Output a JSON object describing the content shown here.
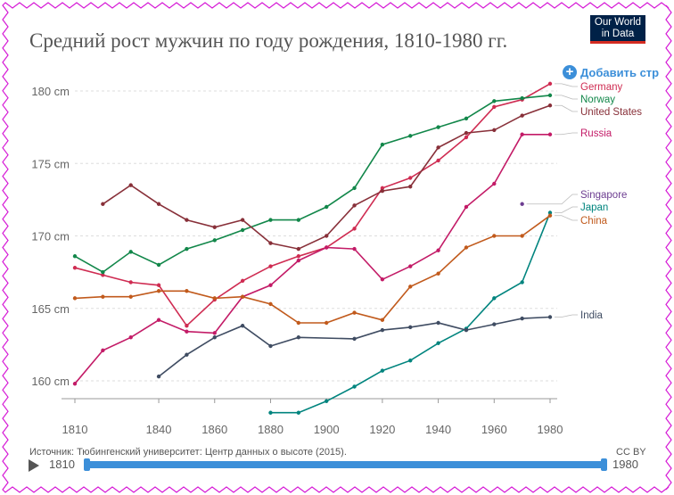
{
  "header": {
    "title": "Средний рост мужчин по году рождения, 1810-1980 гг.",
    "logo_line1": "Our World",
    "logo_line2": "in Data",
    "add_country_label": "Добавить стр"
  },
  "footer": {
    "source": "Источник: Тюбингенский университет: Центр данных о высоте (2015).",
    "license": "CC BY",
    "timeline_start": "1810",
    "timeline_end": "1980"
  },
  "chart_data": {
    "type": "line",
    "title": "Средний рост мужчин по году рождения, 1810-1980 гг.",
    "xlim": [
      1810,
      1980
    ],
    "ylim": [
      157.5,
      181.5
    ],
    "x_ticks": [
      "1810",
      "1840",
      "1860",
      "1880",
      "1900",
      "1920",
      "1940",
      "1960",
      "1980"
    ],
    "y_ticks": [
      "160 cm",
      "165 cm",
      "170 cm",
      "175 cm",
      "180 cm"
    ],
    "y_tick_values": [
      160,
      165,
      170,
      175,
      180
    ],
    "grid": "horizontal dashed",
    "legend": "right, labels at line ends",
    "series": [
      {
        "name": "Germany",
        "color": "#cf2c52",
        "x": [
          1810,
          1820,
          1830,
          1840,
          1850,
          1860,
          1870,
          1880,
          1890,
          1900,
          1910,
          1920,
          1930,
          1940,
          1950,
          1960,
          1970,
          1980
        ],
        "y": [
          167.8,
          167.3,
          166.8,
          166.6,
          163.8,
          165.6,
          166.9,
          167.9,
          168.6,
          169.2,
          170.5,
          173.3,
          174.0,
          175.2,
          176.8,
          178.9,
          179.4,
          180.5
        ]
      },
      {
        "name": "Norway",
        "color": "#12874a",
        "x": [
          1810,
          1820,
          1830,
          1840,
          1850,
          1860,
          1870,
          1880,
          1890,
          1900,
          1910,
          1920,
          1930,
          1940,
          1950,
          1960,
          1970,
          1980
        ],
        "y": [
          168.6,
          167.5,
          168.9,
          168.0,
          169.1,
          169.7,
          170.4,
          171.1,
          171.1,
          172.0,
          173.3,
          176.3,
          176.9,
          177.5,
          178.1,
          179.3,
          179.5,
          179.7
        ]
      },
      {
        "name": "United States",
        "color": "#883039",
        "x": [
          1820,
          1830,
          1840,
          1850,
          1860,
          1870,
          1880,
          1890,
          1900,
          1910,
          1920,
          1930,
          1940,
          1950,
          1960,
          1970,
          1980
        ],
        "y": [
          172.2,
          173.5,
          172.2,
          171.1,
          170.6,
          171.1,
          169.5,
          169.1,
          170.0,
          172.1,
          173.1,
          173.4,
          176.1,
          177.1,
          177.3,
          178.3,
          179.0
        ]
      },
      {
        "name": "Russia",
        "color": "#c31b67",
        "x": [
          1810,
          1820,
          1830,
          1840,
          1850,
          1860,
          1870,
          1880,
          1890,
          1900,
          1910,
          1920,
          1930,
          1940,
          1950,
          1960,
          1970,
          1980
        ],
        "y": [
          159.8,
          162.1,
          163.0,
          164.2,
          163.4,
          163.3,
          165.8,
          166.6,
          168.3,
          169.2,
          169.1,
          167.0,
          167.9,
          169.0,
          172.0,
          173.6,
          177.0,
          177.0
        ]
      },
      {
        "name": "Singapore",
        "color": "#6d3e91",
        "x": [
          1970
        ],
        "y": [
          172.2
        ]
      },
      {
        "name": "Japan",
        "color": "#00847e",
        "x": [
          1880,
          1890,
          1900,
          1910,
          1920,
          1930,
          1940,
          1950,
          1960,
          1970,
          1980
        ],
        "y": [
          157.8,
          157.8,
          158.6,
          159.6,
          160.7,
          161.4,
          162.6,
          163.6,
          165.7,
          166.8,
          171.6
        ]
      },
      {
        "name": "China",
        "color": "#c15a1c",
        "x": [
          1810,
          1820,
          1830,
          1840,
          1850,
          1860,
          1870,
          1880,
          1890,
          1900,
          1910,
          1920,
          1930,
          1940,
          1950,
          1960,
          1970,
          1980
        ],
        "y": [
          165.7,
          165.8,
          165.8,
          166.2,
          166.2,
          165.7,
          165.8,
          165.3,
          164.0,
          164.0,
          164.7,
          164.2,
          166.5,
          167.4,
          169.2,
          170.0,
          170.0,
          171.4
        ]
      },
      {
        "name": "India",
        "color": "#3f4c62",
        "x": [
          1840,
          1850,
          1860,
          1870,
          1880,
          1890,
          1910,
          1920,
          1930,
          1940,
          1950,
          1960,
          1970,
          1980
        ],
        "y": [
          160.3,
          161.8,
          163.0,
          163.8,
          162.4,
          163.0,
          162.9,
          163.5,
          163.7,
          164.0,
          163.5,
          163.9,
          164.3,
          164.4
        ]
      }
    ]
  }
}
